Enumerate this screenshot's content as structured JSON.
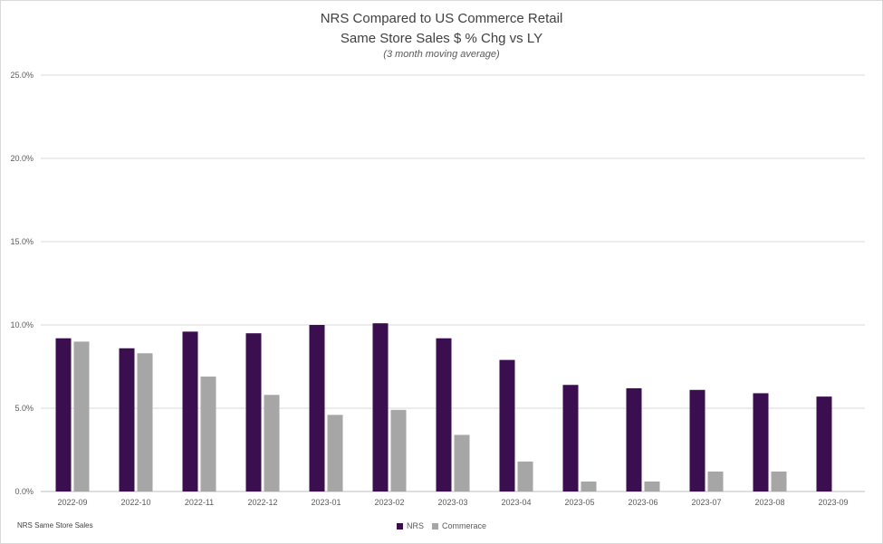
{
  "chart_data": {
    "type": "bar",
    "title": "NRS Compared to US Commerce Retail",
    "subtitle": "Same Store Sales $ % Chg vs LY",
    "note": "(3 month moving average)",
    "categories": [
      "2022-09",
      "2022-10",
      "2022-11",
      "2022-12",
      "2023-01",
      "2023-02",
      "2023-03",
      "2023-04",
      "2023-05",
      "2023-06",
      "2023-07",
      "2023-08",
      "2023-09"
    ],
    "series": [
      {
        "name": "NRS",
        "color": "#3b0f4f",
        "values": [
          9.2,
          8.6,
          9.6,
          9.5,
          10.0,
          10.1,
          9.2,
          7.9,
          6.4,
          6.2,
          6.1,
          5.9,
          5.7
        ]
      },
      {
        "name": "Commerace",
        "color": "#a6a6a6",
        "values": [
          9.0,
          8.3,
          6.9,
          5.8,
          4.6,
          4.9,
          3.4,
          1.8,
          0.6,
          0.6,
          1.2,
          1.2,
          null
        ]
      }
    ],
    "yticks": [
      "0.0%",
      "5.0%",
      "10.0%",
      "15.0%",
      "20.0%",
      "25.0%"
    ],
    "ylim": [
      0,
      25
    ],
    "grid": true,
    "legend": "bottom-center"
  },
  "footnote": "NRS Same Store Sales",
  "legend_items": {
    "nrs": "NRS",
    "commerce": "Commerace"
  }
}
